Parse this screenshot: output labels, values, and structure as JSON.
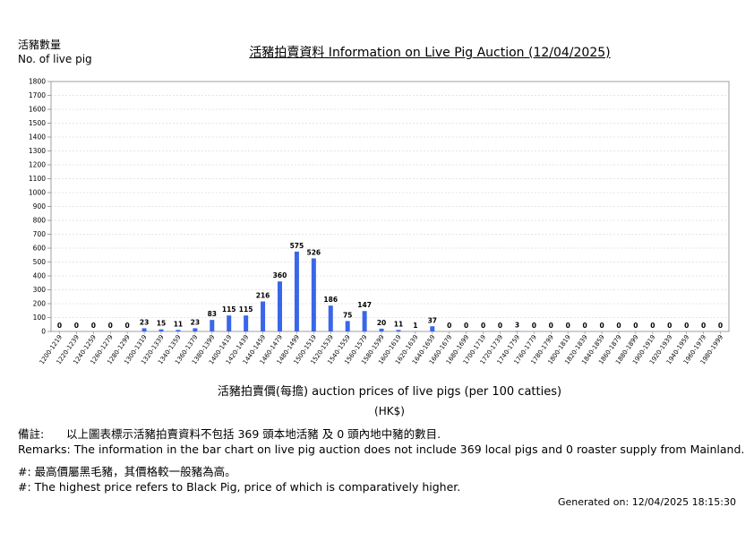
{
  "header": {
    "ylabel_zh": "活豬數量",
    "ylabel_en": "No. of live pig",
    "title": "活豬拍賣資料 Information on Live Pig Auction (12/04/2025)"
  },
  "axis": {
    "xlabel": "活豬拍賣價(每擔) auction prices of live pigs (per 100 catties)",
    "unit": "(HK$)"
  },
  "remarks": {
    "zh_lead": "備註:",
    "zh": "以上圖表標示活豬拍賣資料不包括 369 頭本地活豬 及 0 頭內地中豬的數目.",
    "en": "Remarks: The information in the bar chart on live pig auction does not include 369 local pigs and 0 roaster supply from Mainland."
  },
  "notes": {
    "zh": "#: 最高價屬黑毛豬，其價格較一般豬為高。",
    "en": "#: The highest price refers to Black Pig, price of which is comparatively higher."
  },
  "generated": "Generated on: 12/04/2025 18:15:30",
  "colors": {
    "bar": "#3a66e8",
    "grid": "#cccccc",
    "axis": "#888888"
  },
  "chart_data": {
    "type": "bar",
    "title": "活豬拍賣資料 Information on Live Pig Auction (12/04/2025)",
    "xlabel": "活豬拍賣價(每擔) auction prices of live pigs (per 100 catties)",
    "ylabel": "No. of live pig",
    "ylim": [
      0,
      1800
    ],
    "yticks": [
      0,
      100,
      200,
      300,
      400,
      500,
      600,
      700,
      800,
      900,
      1000,
      1100,
      1200,
      1300,
      1400,
      1500,
      1600,
      1700,
      1800
    ],
    "grid": true,
    "categories": [
      "1200-1219",
      "1220-1239",
      "1240-1259",
      "1260-1279",
      "1280-1299",
      "1300-1319",
      "1320-1339",
      "1340-1359",
      "1360-1379",
      "1380-1399",
      "1400-1419",
      "1420-1439",
      "1440-1459",
      "1460-1479",
      "1480-1499",
      "1500-1519",
      "1520-1539",
      "1540-1559",
      "1560-1579",
      "1580-1599",
      "1600-1619",
      "1620-1639",
      "1640-1659",
      "1660-1679",
      "1680-1699",
      "1700-1719",
      "1720-1739",
      "1740-1759",
      "1760-1779",
      "1780-1799",
      "1800-1819",
      "1820-1839",
      "1840-1859",
      "1860-1879",
      "1880-1899",
      "1900-1919",
      "1920-1939",
      "1940-1959",
      "1960-1979",
      "1980-1999"
    ],
    "values": [
      0,
      0,
      0,
      0,
      0,
      23,
      15,
      11,
      23,
      83,
      115,
      115,
      216,
      360,
      575,
      526,
      186,
      75,
      147,
      20,
      11,
      1,
      37,
      0,
      0,
      0,
      0,
      3,
      0,
      0,
      0,
      0,
      0,
      0,
      0,
      0,
      0,
      0,
      0,
      0
    ]
  }
}
